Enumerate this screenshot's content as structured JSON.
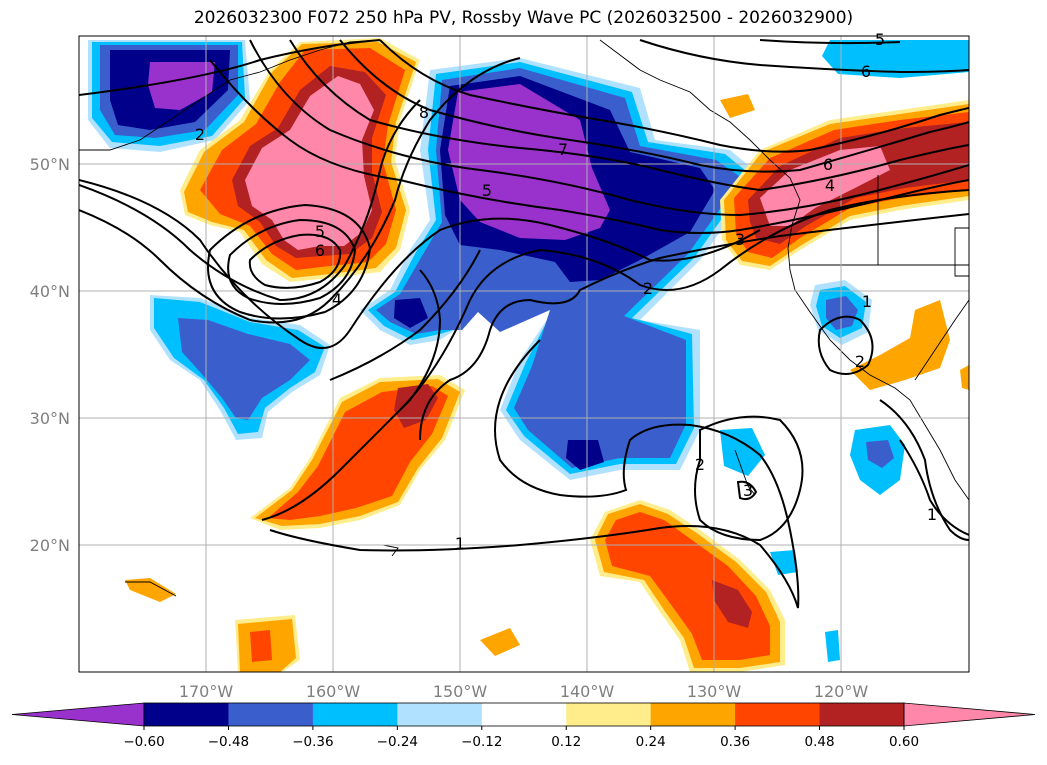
{
  "title": "2026032300 F072 250 hPa PV, Rossby Wave PC (2026032500 - 2026032900)",
  "map": {
    "lon_ticks": [
      "170°W",
      "160°W",
      "150°W",
      "140°W",
      "130°W",
      "120°W"
    ],
    "lat_ticks": [
      "50°N",
      "40°N",
      "30°N",
      "20°N"
    ],
    "contour_labels": [
      "5",
      "6",
      "8",
      "7",
      "5",
      "6",
      "4",
      "3",
      "2",
      "5",
      "6",
      "4",
      "2",
      "1",
      "2",
      "3",
      "1",
      "1",
      "2"
    ]
  },
  "colorbar": {
    "ticks": [
      "−0.60",
      "−0.48",
      "−0.36",
      "−0.24",
      "−0.12",
      "0.12",
      "0.24",
      "0.36",
      "0.48",
      "0.60"
    ],
    "colors": [
      "#9932cc",
      "#00008b",
      "#3a5fcd",
      "#00bfff",
      "#b0e2ff",
      "#ffffff",
      "#ffec8b",
      "#ffa500",
      "#ff4500",
      "#b22222",
      "#ff88aa"
    ]
  }
}
